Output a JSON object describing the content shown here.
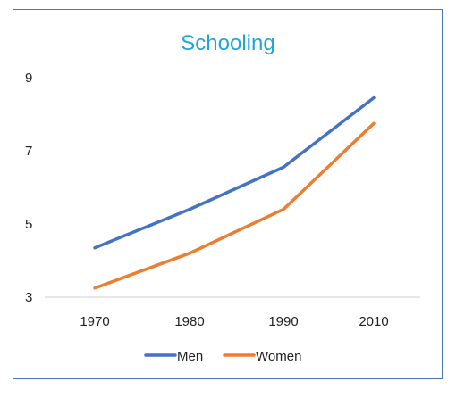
{
  "chart_data": {
    "type": "line",
    "title": "Schooling",
    "xlabel": "",
    "ylabel": "",
    "categories": [
      "1970",
      "1980",
      "1990",
      "2010"
    ],
    "yticks": [
      3,
      5,
      7,
      9
    ],
    "ylim": [
      3,
      9
    ],
    "grid": false,
    "legend_position": "bottom",
    "series": [
      {
        "name": "Men",
        "color": "#4472c4",
        "values": [
          4.35,
          5.4,
          6.55,
          8.45
        ]
      },
      {
        "name": "Women",
        "color": "#ed7d31",
        "values": [
          3.25,
          4.2,
          5.4,
          7.75
        ]
      }
    ]
  }
}
